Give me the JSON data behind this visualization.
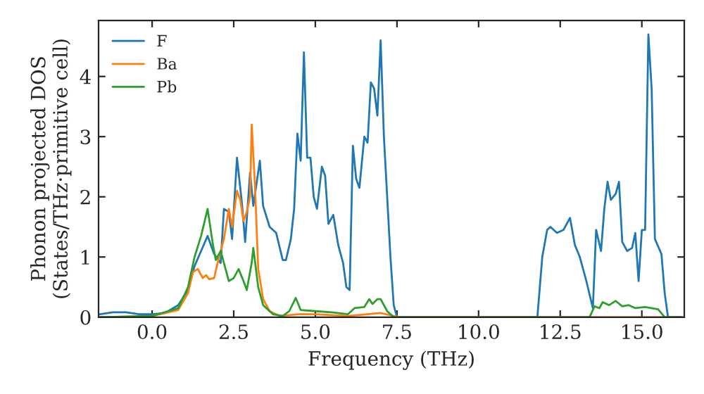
{
  "chart_data": {
    "type": "line",
    "xlabel": "Frequency (THz)",
    "ylabel": "Phonon projected DOS\n(States/THz·primitive cell)",
    "xlim": [
      -1.64,
      16.3
    ],
    "ylim": [
      0,
      4.93
    ],
    "xticks": [
      {
        "value": 0,
        "label": "0.0"
      },
      2.5,
      {
        "value": 5,
        "label": "5.0"
      },
      7.5,
      {
        "value": 10,
        "label": "10.0"
      },
      12.5,
      {
        "value": 15,
        "label": "15.0"
      }
    ],
    "yticks": [
      0,
      1,
      2,
      3,
      4
    ],
    "grid": false,
    "legend": "top left",
    "series": [
      {
        "name": "F",
        "color": "#1f77b4",
        "x": [
          -1.6,
          -1.2,
          -0.8,
          -0.4,
          0,
          0.4,
          0.8,
          1.1,
          1.3,
          1.5,
          1.7,
          1.9,
          2.1,
          2.2,
          2.35,
          2.45,
          2.6,
          2.75,
          2.85,
          3.0,
          3.1,
          3.3,
          3.4,
          3.6,
          3.8,
          4.0,
          4.1,
          4.25,
          4.35,
          4.45,
          4.55,
          4.65,
          4.75,
          4.85,
          4.95,
          5.05,
          5.2,
          5.3,
          5.4,
          5.55,
          5.7,
          5.85,
          5.95,
          6.05,
          6.15,
          6.25,
          6.35,
          6.5,
          6.6,
          6.7,
          6.8,
          6.9,
          7.0,
          7.1,
          7.3,
          7.4,
          7.5,
          11.8,
          11.95,
          12.1,
          12.2,
          12.4,
          12.6,
          12.8,
          12.95,
          13.1,
          13.3,
          13.5,
          13.6,
          13.75,
          13.85,
          13.95,
          14.05,
          14.2,
          14.3,
          14.4,
          14.55,
          14.7,
          14.8,
          14.9,
          15.0,
          15.1,
          15.2,
          15.3,
          15.4,
          15.6,
          15.7,
          15.8,
          16.2
        ],
        "values": [
          0.05,
          0.08,
          0.08,
          0.05,
          0.05,
          0.07,
          0.2,
          0.45,
          0.85,
          1.1,
          1.35,
          1.05,
          0.9,
          1.8,
          1.75,
          1.3,
          2.65,
          1.9,
          1.25,
          2.4,
          1.85,
          2.6,
          1.85,
          1.5,
          1.4,
          0.95,
          0.95,
          1.3,
          1.8,
          3.05,
          2.6,
          4.4,
          2.65,
          2.65,
          2.0,
          1.8,
          2.5,
          2.35,
          1.55,
          1.7,
          1.2,
          0.9,
          0.5,
          0.45,
          2.85,
          2.3,
          2.15,
          3.0,
          2.9,
          3.9,
          3.8,
          3.35,
          4.6,
          3.0,
          1.0,
          0.2,
          0.0,
          0.0,
          1.0,
          1.45,
          1.5,
          1.4,
          1.45,
          1.65,
          1.2,
          1.0,
          0.6,
          0.15,
          1.45,
          1.1,
          1.8,
          2.25,
          1.95,
          2.05,
          2.25,
          1.25,
          1.1,
          1.15,
          1.4,
          0.6,
          1.45,
          1.45,
          4.7,
          3.8,
          1.3,
          1.05,
          0.4,
          0.0,
          0.0
        ]
      },
      {
        "name": "Ba",
        "color": "#ff7f0e",
        "x": [
          -1.6,
          0,
          0.8,
          1.1,
          1.25,
          1.4,
          1.55,
          1.65,
          1.75,
          1.9,
          2.05,
          2.2,
          2.35,
          2.45,
          2.6,
          2.7,
          2.8,
          2.9,
          3.0,
          3.05,
          3.15,
          3.25,
          3.4,
          3.6,
          3.9,
          4.5,
          5.0,
          6.0,
          6.6,
          7.0,
          7.4,
          7.6,
          16.2
        ],
        "values": [
          0,
          0.02,
          0.12,
          0.4,
          0.75,
          0.8,
          0.65,
          0.7,
          0.63,
          0.65,
          1.0,
          1.3,
          1.8,
          1.5,
          2.1,
          1.95,
          1.6,
          1.75,
          2.0,
          3.2,
          2.2,
          0.8,
          0.3,
          0.1,
          0.02,
          0.05,
          0.05,
          0.02,
          0.05,
          0.07,
          0.02,
          0,
          0
        ]
      },
      {
        "name": "Pb",
        "color": "#2ca02c",
        "x": [
          -1.6,
          0,
          0.8,
          1.1,
          1.3,
          1.5,
          1.7,
          1.85,
          1.95,
          2.1,
          2.2,
          2.35,
          2.5,
          2.65,
          2.8,
          2.9,
          3.05,
          3.1,
          3.25,
          3.4,
          3.7,
          4.0,
          4.2,
          4.4,
          4.55,
          5.0,
          5.5,
          6.0,
          6.2,
          6.5,
          6.65,
          6.75,
          6.9,
          7.0,
          7.2,
          7.4,
          13.4,
          13.55,
          13.7,
          13.8,
          14.0,
          14.2,
          14.4,
          14.6,
          14.8,
          15.1,
          15.5,
          15.7,
          16.2
        ],
        "values": [
          0,
          0.02,
          0.15,
          0.5,
          1.0,
          1.35,
          1.8,
          1.25,
          0.95,
          1.1,
          0.9,
          0.6,
          0.65,
          0.8,
          0.6,
          0.45,
          0.9,
          1.15,
          0.5,
          0.2,
          0.05,
          0.02,
          0.1,
          0.32,
          0.12,
          0.1,
          0.08,
          0.05,
          0.15,
          0.17,
          0.3,
          0.22,
          0.3,
          0.3,
          0.1,
          0.0,
          0.0,
          0.18,
          0.15,
          0.25,
          0.2,
          0.27,
          0.18,
          0.2,
          0.15,
          0.17,
          0.13,
          0.0,
          0
        ]
      }
    ]
  }
}
